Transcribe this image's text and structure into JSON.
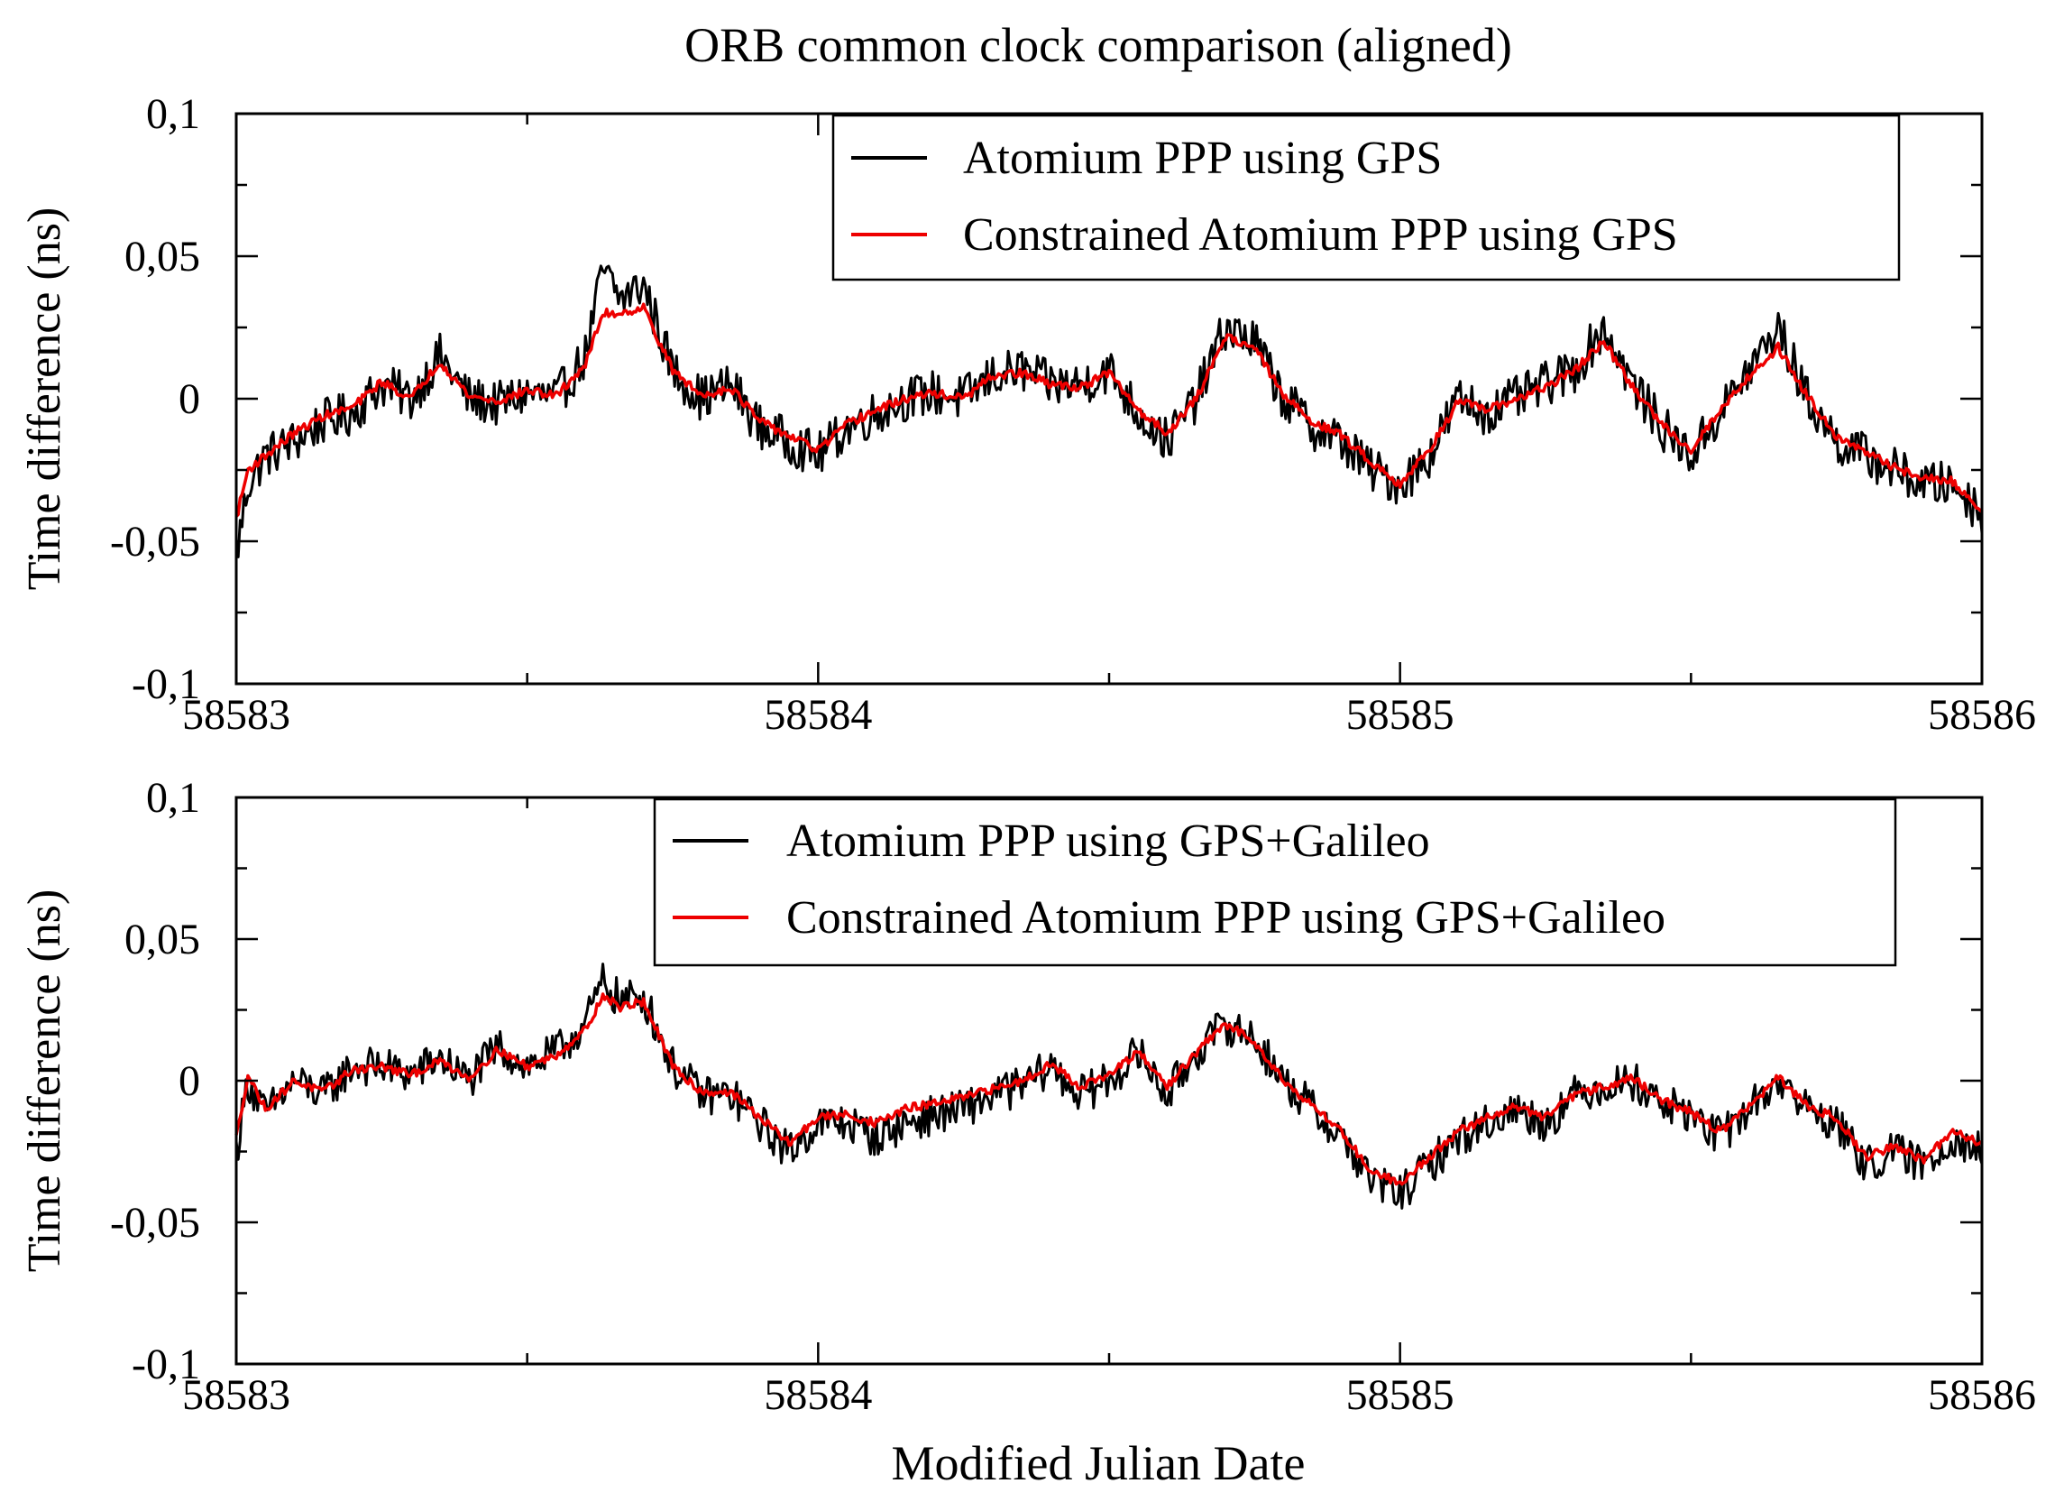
{
  "figure_title": "ORB common clock comparison (aligned)",
  "colors": {
    "raw": "#000000",
    "constrained": "#ee0000",
    "axis": "#000000"
  },
  "chart_data": [
    {
      "type": "line",
      "title": "ORB common clock comparison (aligned)",
      "xlabel": "",
      "ylabel": "Time difference (ns)",
      "xlim": [
        58583,
        58586
      ],
      "ylim": [
        -0.1,
        0.1
      ],
      "x_ticks": [
        58583,
        58584,
        58585,
        58586
      ],
      "x_tick_labels": [
        "58583",
        "58584",
        "58585",
        "58586"
      ],
      "y_ticks": [
        -0.1,
        -0.05,
        0,
        0.05,
        0.1
      ],
      "y_tick_labels": [
        "-0,1",
        "-0,05",
        "0",
        "0,05",
        "0,1"
      ],
      "legend_position": "top-right",
      "legend": [
        "Atomium PPP using GPS",
        "Constrained Atomium PPP using GPS"
      ],
      "series": [
        {
          "name": "Atomium PPP using GPS",
          "color": "#000000",
          "noise": 0.008,
          "x": [
            58583.0,
            58583.02,
            58583.05,
            58583.1,
            58583.15,
            58583.2,
            58583.25,
            58583.3,
            58583.35,
            58583.4,
            58583.45,
            58583.5,
            58583.55,
            58583.6,
            58583.63,
            58583.66,
            58583.7,
            58583.75,
            58583.8,
            58583.85,
            58583.9,
            58583.95,
            58584.0,
            58584.05,
            58584.1,
            58584.15,
            58584.2,
            58584.25,
            58584.3,
            58584.35,
            58584.4,
            58584.45,
            58584.5,
            58584.55,
            58584.6,
            58584.65,
            58584.7,
            58584.75,
            58584.8,
            58584.85,
            58584.9,
            58584.95,
            58585.0,
            58585.05,
            58585.1,
            58585.15,
            58585.2,
            58585.25,
            58585.3,
            58585.35,
            58585.4,
            58585.45,
            58585.5,
            58585.55,
            58585.6,
            58585.65,
            58585.7,
            58585.75,
            58585.8,
            58585.85,
            58585.9,
            58585.95,
            58586.0
          ],
          "y": [
            -0.055,
            -0.03,
            -0.02,
            -0.015,
            -0.008,
            -0.005,
            0.005,
            0.0,
            0.015,
            0.0,
            -0.002,
            0.002,
            0.0,
            0.015,
            0.045,
            0.035,
            0.04,
            0.01,
            0.0,
            0.005,
            -0.01,
            -0.015,
            -0.02,
            -0.01,
            -0.005,
            0.0,
            0.002,
            0.0,
            0.008,
            0.01,
            0.005,
            0.005,
            0.01,
            -0.005,
            -0.015,
            0.0,
            0.025,
            0.02,
            0.0,
            -0.01,
            -0.015,
            -0.025,
            -0.03,
            -0.02,
            0.0,
            -0.005,
            0.0,
            0.005,
            0.01,
            0.025,
            0.005,
            -0.01,
            -0.02,
            -0.005,
            0.01,
            0.025,
            0.0,
            -0.015,
            -0.02,
            -0.025,
            -0.03,
            -0.03,
            -0.04
          ]
        },
        {
          "name": "Constrained Atomium PPP using GPS",
          "color": "#ee0000",
          "noise": 0.0,
          "x": [
            58583.0,
            58583.02,
            58583.05,
            58583.1,
            58583.15,
            58583.2,
            58583.25,
            58583.3,
            58583.35,
            58583.4,
            58583.45,
            58583.5,
            58583.55,
            58583.6,
            58583.63,
            58583.66,
            58583.7,
            58583.75,
            58583.8,
            58583.85,
            58583.9,
            58583.95,
            58584.0,
            58584.05,
            58584.1,
            58584.15,
            58584.2,
            58584.25,
            58584.3,
            58584.35,
            58584.4,
            58584.45,
            58584.5,
            58584.55,
            58584.6,
            58584.65,
            58584.7,
            58584.75,
            58584.8,
            58584.85,
            58584.9,
            58584.95,
            58585.0,
            58585.05,
            58585.1,
            58585.15,
            58585.2,
            58585.25,
            58585.3,
            58585.35,
            58585.4,
            58585.45,
            58585.5,
            58585.55,
            58585.6,
            58585.65,
            58585.7,
            58585.75,
            58585.8,
            58585.85,
            58585.9,
            58585.95,
            58586.0
          ],
          "y": [
            -0.042,
            -0.025,
            -0.02,
            -0.012,
            -0.006,
            -0.003,
            0.006,
            0.0,
            0.013,
            0.001,
            -0.001,
            0.003,
            0.001,
            0.012,
            0.03,
            0.03,
            0.032,
            0.01,
            0.001,
            0.004,
            -0.008,
            -0.013,
            -0.018,
            -0.009,
            -0.004,
            0.0,
            0.002,
            0.0,
            0.008,
            0.009,
            0.005,
            0.004,
            0.009,
            -0.004,
            -0.012,
            0.0,
            0.022,
            0.018,
            0.001,
            -0.008,
            -0.013,
            -0.022,
            -0.03,
            -0.018,
            -0.001,
            -0.004,
            0.0,
            0.004,
            0.01,
            0.02,
            0.004,
            -0.009,
            -0.018,
            -0.004,
            0.008,
            0.018,
            0.001,
            -0.013,
            -0.019,
            -0.024,
            -0.028,
            -0.029,
            -0.04
          ]
        }
      ]
    },
    {
      "type": "line",
      "title": "",
      "xlabel": "Modified Julian Date",
      "ylabel": "Time difference (ns)",
      "xlim": [
        58583,
        58586
      ],
      "ylim": [
        -0.1,
        0.1
      ],
      "x_ticks": [
        58583,
        58584,
        58585,
        58586
      ],
      "x_tick_labels": [
        "58583",
        "58584",
        "58585",
        "58586"
      ],
      "y_ticks": [
        -0.1,
        -0.05,
        0,
        0.05,
        0.1
      ],
      "y_tick_labels": [
        "-0,1",
        "-0,05",
        "0",
        "0,05",
        "0,1"
      ],
      "legend_position": "top-right",
      "legend": [
        "Atomium PPP using GPS+Galileo",
        "Constrained Atomium PPP using GPS+Galileo"
      ],
      "series": [
        {
          "name": "Atomium PPP using GPS+Galileo",
          "color": "#000000",
          "noise": 0.007,
          "x": [
            58583.0,
            58583.02,
            58583.05,
            58583.1,
            58583.15,
            58583.2,
            58583.25,
            58583.3,
            58583.35,
            58583.4,
            58583.45,
            58583.5,
            58583.55,
            58583.6,
            58583.63,
            58583.66,
            58583.7,
            58583.75,
            58583.8,
            58583.85,
            58583.9,
            58583.95,
            58584.0,
            58584.05,
            58584.1,
            58584.15,
            58584.2,
            58584.25,
            58584.3,
            58584.35,
            58584.4,
            58584.45,
            58584.5,
            58584.55,
            58584.6,
            58584.65,
            58584.7,
            58584.75,
            58584.8,
            58584.85,
            58584.9,
            58584.95,
            58585.0,
            58585.05,
            58585.1,
            58585.15,
            58585.2,
            58585.25,
            58585.3,
            58585.35,
            58585.4,
            58585.45,
            58585.5,
            58585.55,
            58585.6,
            58585.65,
            58585.7,
            58585.75,
            58585.8,
            58585.85,
            58585.9,
            58585.95,
            58586.0
          ],
          "y": [
            -0.025,
            0.0,
            -0.012,
            0.0,
            -0.005,
            0.005,
            0.005,
            0.002,
            0.008,
            0.0,
            0.012,
            0.005,
            0.01,
            0.02,
            0.035,
            0.028,
            0.03,
            0.005,
            -0.005,
            -0.005,
            -0.015,
            -0.025,
            -0.015,
            -0.015,
            -0.02,
            -0.015,
            -0.012,
            -0.01,
            -0.005,
            -0.002,
            0.005,
            -0.005,
            0.0,
            0.01,
            -0.005,
            0.01,
            0.02,
            0.015,
            0.0,
            -0.01,
            -0.02,
            -0.035,
            -0.04,
            -0.03,
            -0.02,
            -0.015,
            -0.01,
            -0.015,
            -0.005,
            -0.002,
            0.0,
            -0.008,
            -0.012,
            -0.02,
            -0.01,
            0.0,
            -0.01,
            -0.015,
            -0.03,
            -0.025,
            -0.03,
            -0.02,
            -0.025
          ]
        },
        {
          "name": "Constrained Atomium PPP using GPS+Galileo",
          "color": "#ee0000",
          "noise": 0.0,
          "x": [
            58583.0,
            58583.02,
            58583.05,
            58583.1,
            58583.15,
            58583.2,
            58583.25,
            58583.3,
            58583.35,
            58583.4,
            58583.45,
            58583.5,
            58583.55,
            58583.6,
            58583.63,
            58583.66,
            58583.7,
            58583.75,
            58583.8,
            58583.85,
            58583.9,
            58583.95,
            58584.0,
            58584.05,
            58584.1,
            58584.15,
            58584.2,
            58584.25,
            58584.3,
            58584.35,
            58584.4,
            58584.45,
            58584.5,
            58584.55,
            58584.6,
            58584.65,
            58584.7,
            58584.75,
            58584.8,
            58584.85,
            58584.9,
            58584.95,
            58585.0,
            58585.05,
            58585.1,
            58585.15,
            58585.2,
            58585.25,
            58585.3,
            58585.35,
            58585.4,
            58585.45,
            58585.5,
            58585.55,
            58585.6,
            58585.65,
            58585.7,
            58585.75,
            58585.8,
            58585.85,
            58585.9,
            58585.95,
            58586.0
          ],
          "y": [
            -0.02,
            0.002,
            -0.01,
            0.0,
            -0.004,
            0.004,
            0.005,
            0.002,
            0.007,
            0.001,
            0.011,
            0.005,
            0.009,
            0.018,
            0.03,
            0.026,
            0.028,
            0.005,
            -0.004,
            -0.004,
            -0.013,
            -0.022,
            -0.013,
            -0.012,
            -0.015,
            -0.01,
            -0.008,
            -0.006,
            -0.003,
            0.0,
            0.006,
            -0.002,
            0.002,
            0.01,
            -0.002,
            0.01,
            0.02,
            0.014,
            0.0,
            -0.009,
            -0.018,
            -0.032,
            -0.036,
            -0.027,
            -0.018,
            -0.013,
            -0.009,
            -0.013,
            -0.005,
            -0.002,
            0.001,
            -0.007,
            -0.011,
            -0.018,
            -0.009,
            0.001,
            -0.009,
            -0.013,
            -0.027,
            -0.023,
            -0.028,
            -0.018,
            -0.022
          ]
        }
      ]
    }
  ]
}
